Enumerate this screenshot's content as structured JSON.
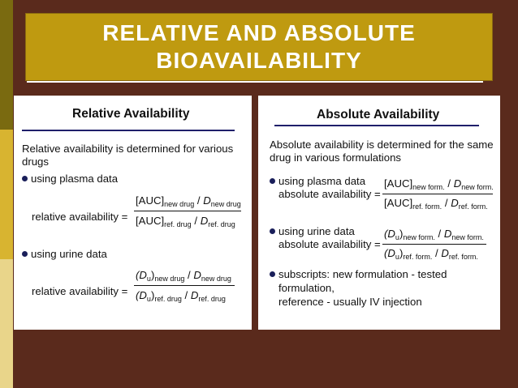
{
  "slide": {
    "title_line1": "RELATIVE AND ABSOLUTE",
    "title_line2": "BIOAVAILABILITY"
  },
  "relative": {
    "heading": "Relative Availability",
    "intro_1": "Relative availability is determined for various",
    "intro_2": "drugs",
    "bullet_plasma": "using plasma data",
    "formula_label": "relative availability =",
    "plasma_num_auc": "[AUC]",
    "plasma_num_sub": "new drug",
    "plasma_num_d": "D",
    "plasma_num_dsub": "new drug",
    "plasma_den_auc": "[AUC]",
    "plasma_den_sub": "ref. drug",
    "plasma_den_d": "D",
    "plasma_den_dsub": "ref. drug",
    "bullet_urine": "using urine data",
    "formula_label_2": "relative availability =",
    "urine_num_du": "(D",
    "urine_num_u": "u",
    "urine_num_sub": "new drug",
    "urine_num_d": "D",
    "urine_num_dsub": "new drug",
    "urine_den_du": "(D",
    "urine_den_u": "u",
    "urine_den_sub": "ref. drug",
    "urine_den_d": "D",
    "urine_den_dsub": "ref. drug"
  },
  "absolute": {
    "heading": "Absolute Availability",
    "intro_1": "Absolute availability is determined for the same",
    "intro_2": "drug in various formulations",
    "bullet_plasma": "using plasma data",
    "formula_label": "absolute availability =",
    "plasma_num_auc": "[AUC]",
    "plasma_num_sub": "new form.",
    "plasma_num_d": "D",
    "plasma_num_dsub": "new form.",
    "plasma_den_auc": "[AUC]",
    "plasma_den_sub": "ref. form.",
    "plasma_den_d": "D",
    "plasma_den_dsub": "ref. form.",
    "bullet_urine": "using urine data",
    "formula_label_2": "absolute availability =",
    "urine_num_du": "(D",
    "urine_num_u": "u",
    "urine_num_sub": "new form.",
    "urine_num_d": "D",
    "urine_num_dsub": "new form.",
    "urine_den_du": "(D",
    "urine_den_u": "u",
    "urine_den_sub": "ref. form.",
    "urine_den_d": "D",
    "urine_den_dsub": "ref. form.",
    "bullet_subscripts": "subscripts: new formulation - tested",
    "subscripts_2": "formulation,",
    "subscripts_3": "reference - usually IV injection"
  }
}
